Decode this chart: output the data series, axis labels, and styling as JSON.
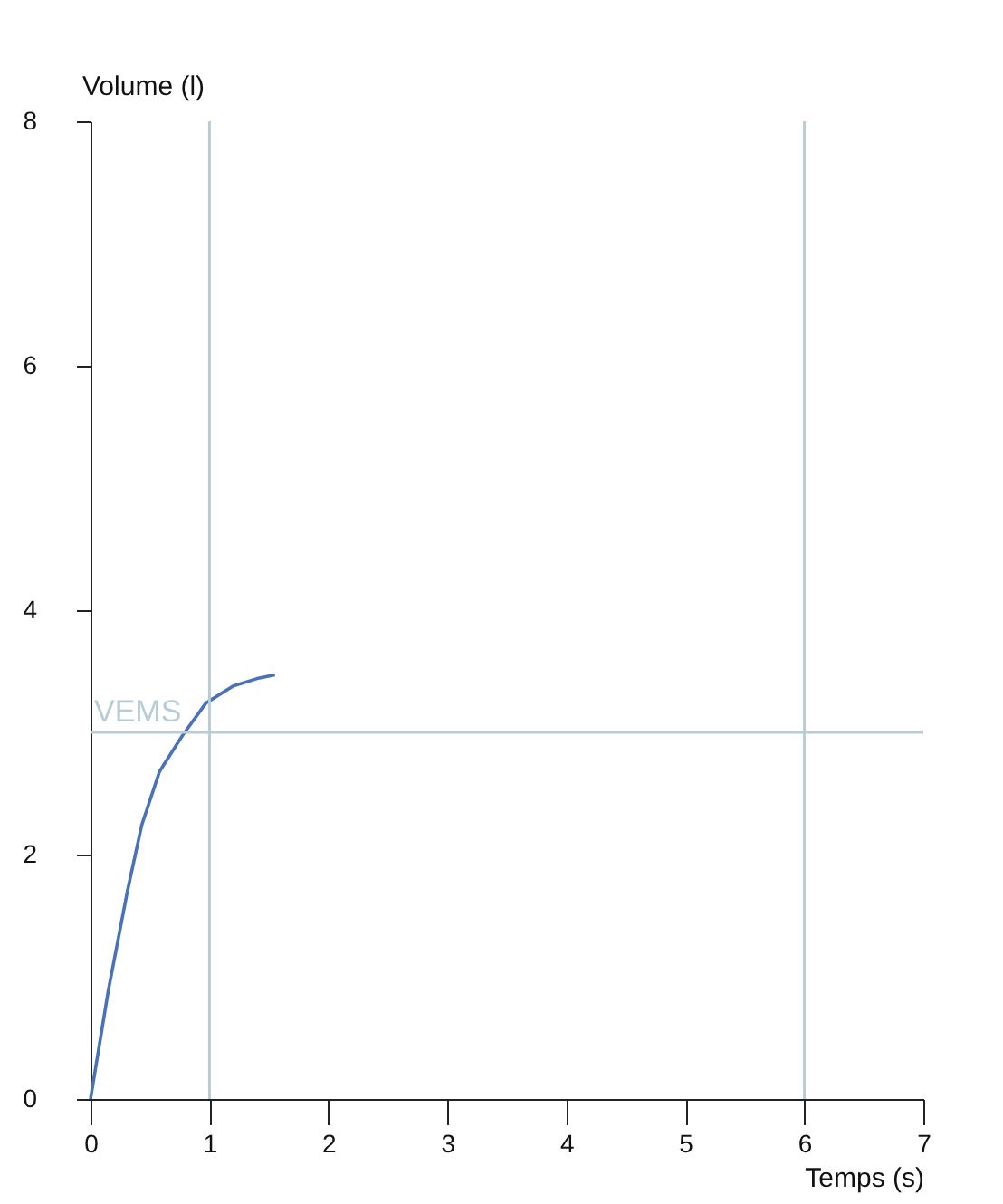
{
  "chart_data": {
    "type": "line",
    "xlabel": "Temps (s)",
    "ylabel": "Volume (l)",
    "xlim": [
      0,
      7
    ],
    "xticks": [
      0,
      1,
      2,
      3,
      4,
      5,
      6,
      7
    ],
    "ylim": [
      0,
      8
    ],
    "yticks": [
      0,
      2,
      4,
      6,
      8
    ],
    "grid": false,
    "marker": "none",
    "line_style": "solid",
    "x": [
      0,
      0.15,
      0.31,
      0.43,
      0.58,
      0.77,
      0.97,
      1.2,
      1.4,
      1.55
    ],
    "series": [
      {
        "color": "#4a72b8",
        "values": [
          0,
          0.89,
          1.7,
          2.24,
          2.68,
          2.97,
          3.24,
          3.38,
          3.44,
          3.47
        ]
      }
    ],
    "ref_lines": [
      {
        "axis": "x",
        "value": 1,
        "color": "#b7ccd3"
      },
      {
        "axis": "x",
        "value": 6,
        "color": "#b7ccd3"
      },
      {
        "axis": "y",
        "value": 3,
        "label": "VEMS",
        "color": "#b7ccd3"
      }
    ]
  }
}
